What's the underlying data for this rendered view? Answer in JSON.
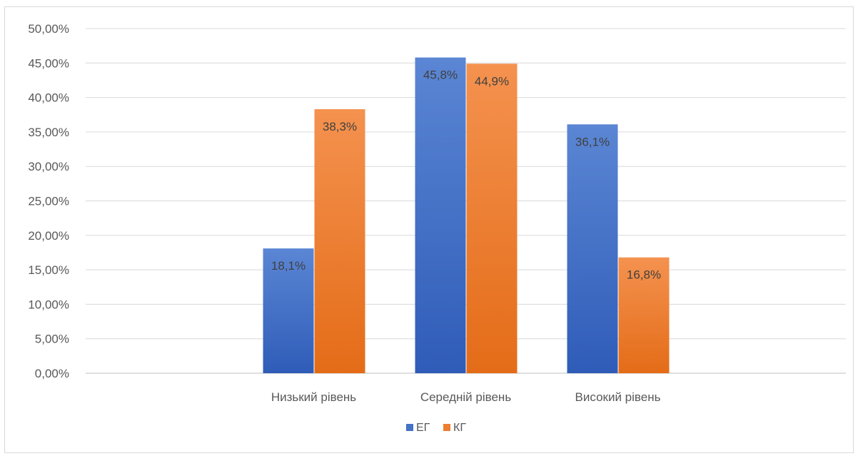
{
  "chart_data": {
    "type": "bar",
    "categories": [
      "Низький рівень",
      "Середній рівень",
      "Високий рівень"
    ],
    "series": [
      {
        "name": "ЕГ",
        "values": [
          18.1,
          45.8,
          36.1
        ],
        "labels": [
          "18,1%",
          "45,8%",
          "36,1%"
        ],
        "color": "#4472c4"
      },
      {
        "name": "КГ",
        "values": [
          38.3,
          44.9,
          16.8
        ],
        "labels": [
          "38,3%",
          "44,9%",
          "16,8%"
        ],
        "color": "#ed7d31"
      }
    ],
    "ylim": [
      0,
      50
    ],
    "yticks": [
      "0,00%",
      "5,00%",
      "10,00%",
      "15,00%",
      "20,00%",
      "25,00%",
      "30,00%",
      "35,00%",
      "40,00%",
      "45,00%",
      "50,00%"
    ],
    "grid": true,
    "legend": "bottom",
    "title": "",
    "xlabel": "",
    "ylabel": ""
  }
}
